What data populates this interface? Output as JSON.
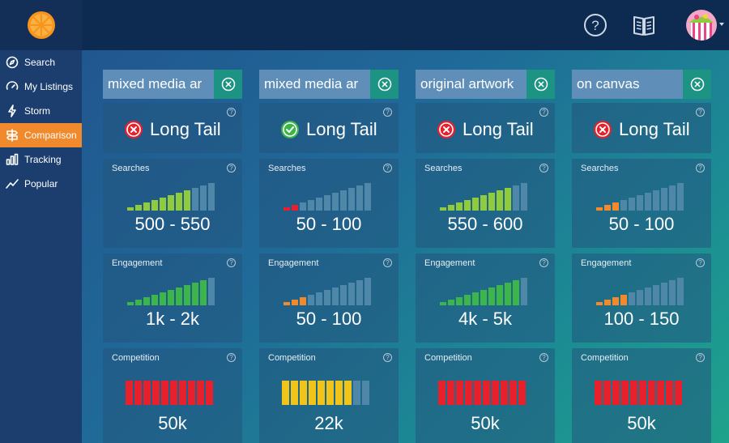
{
  "header": {
    "avatar_name": "user-avatar"
  },
  "sidebar": {
    "items": [
      {
        "label": "Search",
        "icon": "compass-icon",
        "active": false
      },
      {
        "label": "My Listings",
        "icon": "gauge-icon",
        "active": false
      },
      {
        "label": "Storm",
        "icon": "lightning-icon",
        "active": false
      },
      {
        "label": "Comparison",
        "icon": "signpost-icon",
        "active": true
      },
      {
        "label": "Tracking",
        "icon": "bar-chart-icon",
        "active": false
      },
      {
        "label": "Popular",
        "icon": "trend-line-icon",
        "active": false
      }
    ]
  },
  "labels": {
    "searches": "Searches",
    "engagement": "Engagement",
    "competition": "Competition",
    "help": "?"
  },
  "colors": {
    "green": "#8fcb3c",
    "green_dark": "#3cb54a",
    "red": "#e8202c",
    "orange": "#f08a2c",
    "yellow": "#f0c419",
    "dim": "#4f87a8",
    "accent": "#f08a2c"
  },
  "columns": [
    {
      "keyword": "mixed media ar",
      "tail_status": "bad",
      "tail_label": "Long Tail",
      "searches": {
        "value": "500 - 550",
        "level": 8,
        "scheme": "green"
      },
      "engagement": {
        "value": "1k - 2k",
        "level": 10,
        "scheme": "green_dark"
      },
      "competition": {
        "value": "50k",
        "level": 10,
        "scheme": "red"
      }
    },
    {
      "keyword": "mixed media ar",
      "tail_status": "good",
      "tail_label": "Long Tail",
      "searches": {
        "value": "50 - 100",
        "level": 2,
        "scheme": "red"
      },
      "engagement": {
        "value": "50 - 100",
        "level": 3,
        "scheme": "orange"
      },
      "competition": {
        "value": "22k",
        "level": 8,
        "scheme": "yellow"
      }
    },
    {
      "keyword": "original artwork",
      "tail_status": "bad",
      "tail_label": "Long Tail",
      "searches": {
        "value": "550 - 600",
        "level": 9,
        "scheme": "green"
      },
      "engagement": {
        "value": "4k - 5k",
        "level": 10,
        "scheme": "green_dark"
      },
      "competition": {
        "value": "50k",
        "level": 10,
        "scheme": "red"
      }
    },
    {
      "keyword": "on canvas",
      "tail_status": "bad",
      "tail_label": "Long Tail",
      "searches": {
        "value": "50 - 100",
        "level": 3,
        "scheme": "orange"
      },
      "engagement": {
        "value": "100 - 150",
        "level": 4,
        "scheme": "orange"
      },
      "competition": {
        "value": "50k",
        "level": 10,
        "scheme": "red"
      }
    }
  ]
}
